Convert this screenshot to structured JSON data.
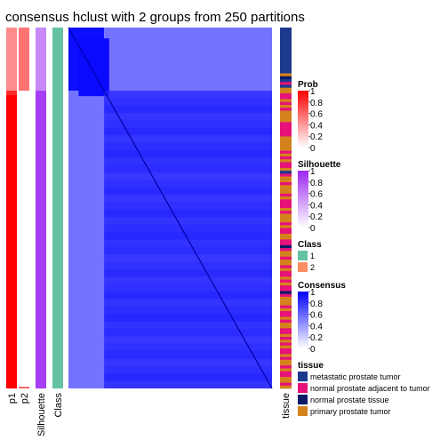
{
  "title": "consensus hclust with 2 groups from 250 partitions",
  "chart_data": {
    "type": "heatmap",
    "title": "consensus hclust with 2 groups from 250 partitions",
    "groups": 2,
    "partitions": 250,
    "annotation_tracks": [
      "p1",
      "p2",
      "Silhouette",
      "Class"
    ],
    "right_annotation": "tissue",
    "class_fraction": [
      0.175,
      0.825
    ],
    "p1_by_class": [
      0.45,
      1.0
    ],
    "p2_by_class": [
      0.55,
      0.0
    ],
    "silhouette_by_class": [
      0.55,
      0.9
    ],
    "consensus_blocks": [
      {
        "rows": [
          0.0,
          0.175
        ],
        "cols": [
          0.0,
          0.175
        ],
        "value": 0.95
      },
      {
        "rows": [
          0.0,
          0.175
        ],
        "cols": [
          0.175,
          1.0
        ],
        "value": 0.55
      },
      {
        "rows": [
          0.175,
          1.0
        ],
        "cols": [
          0.0,
          0.175
        ],
        "value": 0.55
      },
      {
        "rows": [
          0.175,
          1.0
        ],
        "cols": [
          0.175,
          1.0
        ],
        "value": 0.82
      }
    ],
    "legends": [
      {
        "title": "Prob",
        "type": "gradient",
        "colors": [
          "#ffffff",
          "#ff0000"
        ],
        "ticks": [
          "1",
          "0.8",
          "0.6",
          "0.4",
          "0.2",
          "0"
        ]
      },
      {
        "title": "Silhouette",
        "type": "gradient",
        "colors": [
          "#ffffff",
          "#9c27f0"
        ],
        "ticks": [
          "1",
          "0.8",
          "0.6",
          "0.4",
          "0.2",
          "0"
        ]
      },
      {
        "title": "Class",
        "type": "discrete",
        "items": [
          {
            "label": "1",
            "color": "#66c2a5"
          },
          {
            "label": "2",
            "color": "#fc8d62"
          }
        ]
      },
      {
        "title": "Consensus",
        "type": "gradient",
        "colors": [
          "#ffffff",
          "#0000ff"
        ],
        "ticks": [
          "1",
          "0.8",
          "0.6",
          "0.4",
          "0.2",
          "0"
        ]
      },
      {
        "title": "tissue",
        "type": "discrete",
        "items": [
          {
            "label": "metastatic prostate tumor",
            "color": "#1b3a8c"
          },
          {
            "label": "normal prostate adjacent to tumor",
            "color": "#e6127a"
          },
          {
            "label": "normal prostate tissue",
            "color": "#0a1a66"
          },
          {
            "label": "primary prostate tumor",
            "color": "#d4821c"
          }
        ]
      }
    ],
    "tissue_sequence": [
      "M",
      "M",
      "M",
      "M",
      "M",
      "M",
      "M",
      "M",
      "M",
      "M",
      "M",
      "M",
      "M",
      "M",
      "M",
      "M",
      "P",
      "N",
      "M",
      "A",
      "M",
      "P",
      "P",
      "A",
      "A",
      "P",
      "A",
      "P",
      "A",
      "P",
      "P",
      "P",
      "P",
      "A",
      "A",
      "A",
      "A",
      "A",
      "P",
      "P",
      "P",
      "P",
      "P",
      "A",
      "P",
      "A",
      "P",
      "A",
      "A",
      "P",
      "M",
      "A",
      "P",
      "P",
      "A",
      "P",
      "P",
      "P",
      "A",
      "P",
      "A",
      "A",
      "A",
      "P",
      "A",
      "P",
      "P",
      "P",
      "A",
      "P",
      "A",
      "A",
      "P",
      "P",
      "A",
      "A",
      "N",
      "A",
      "P",
      "P",
      "A",
      "P",
      "P",
      "A",
      "P",
      "A",
      "A",
      "P",
      "A",
      "P",
      "A",
      "A",
      "N",
      "A",
      "P",
      "P",
      "P",
      "A",
      "P",
      "A",
      "A",
      "P",
      "A",
      "P",
      "P",
      "A",
      "A",
      "P",
      "A",
      "P",
      "A",
      "P",
      "A",
      "A",
      "P",
      "A",
      "P",
      "P",
      "A",
      "P",
      "A",
      "A",
      "P",
      "P",
      "A",
      "P"
    ]
  }
}
